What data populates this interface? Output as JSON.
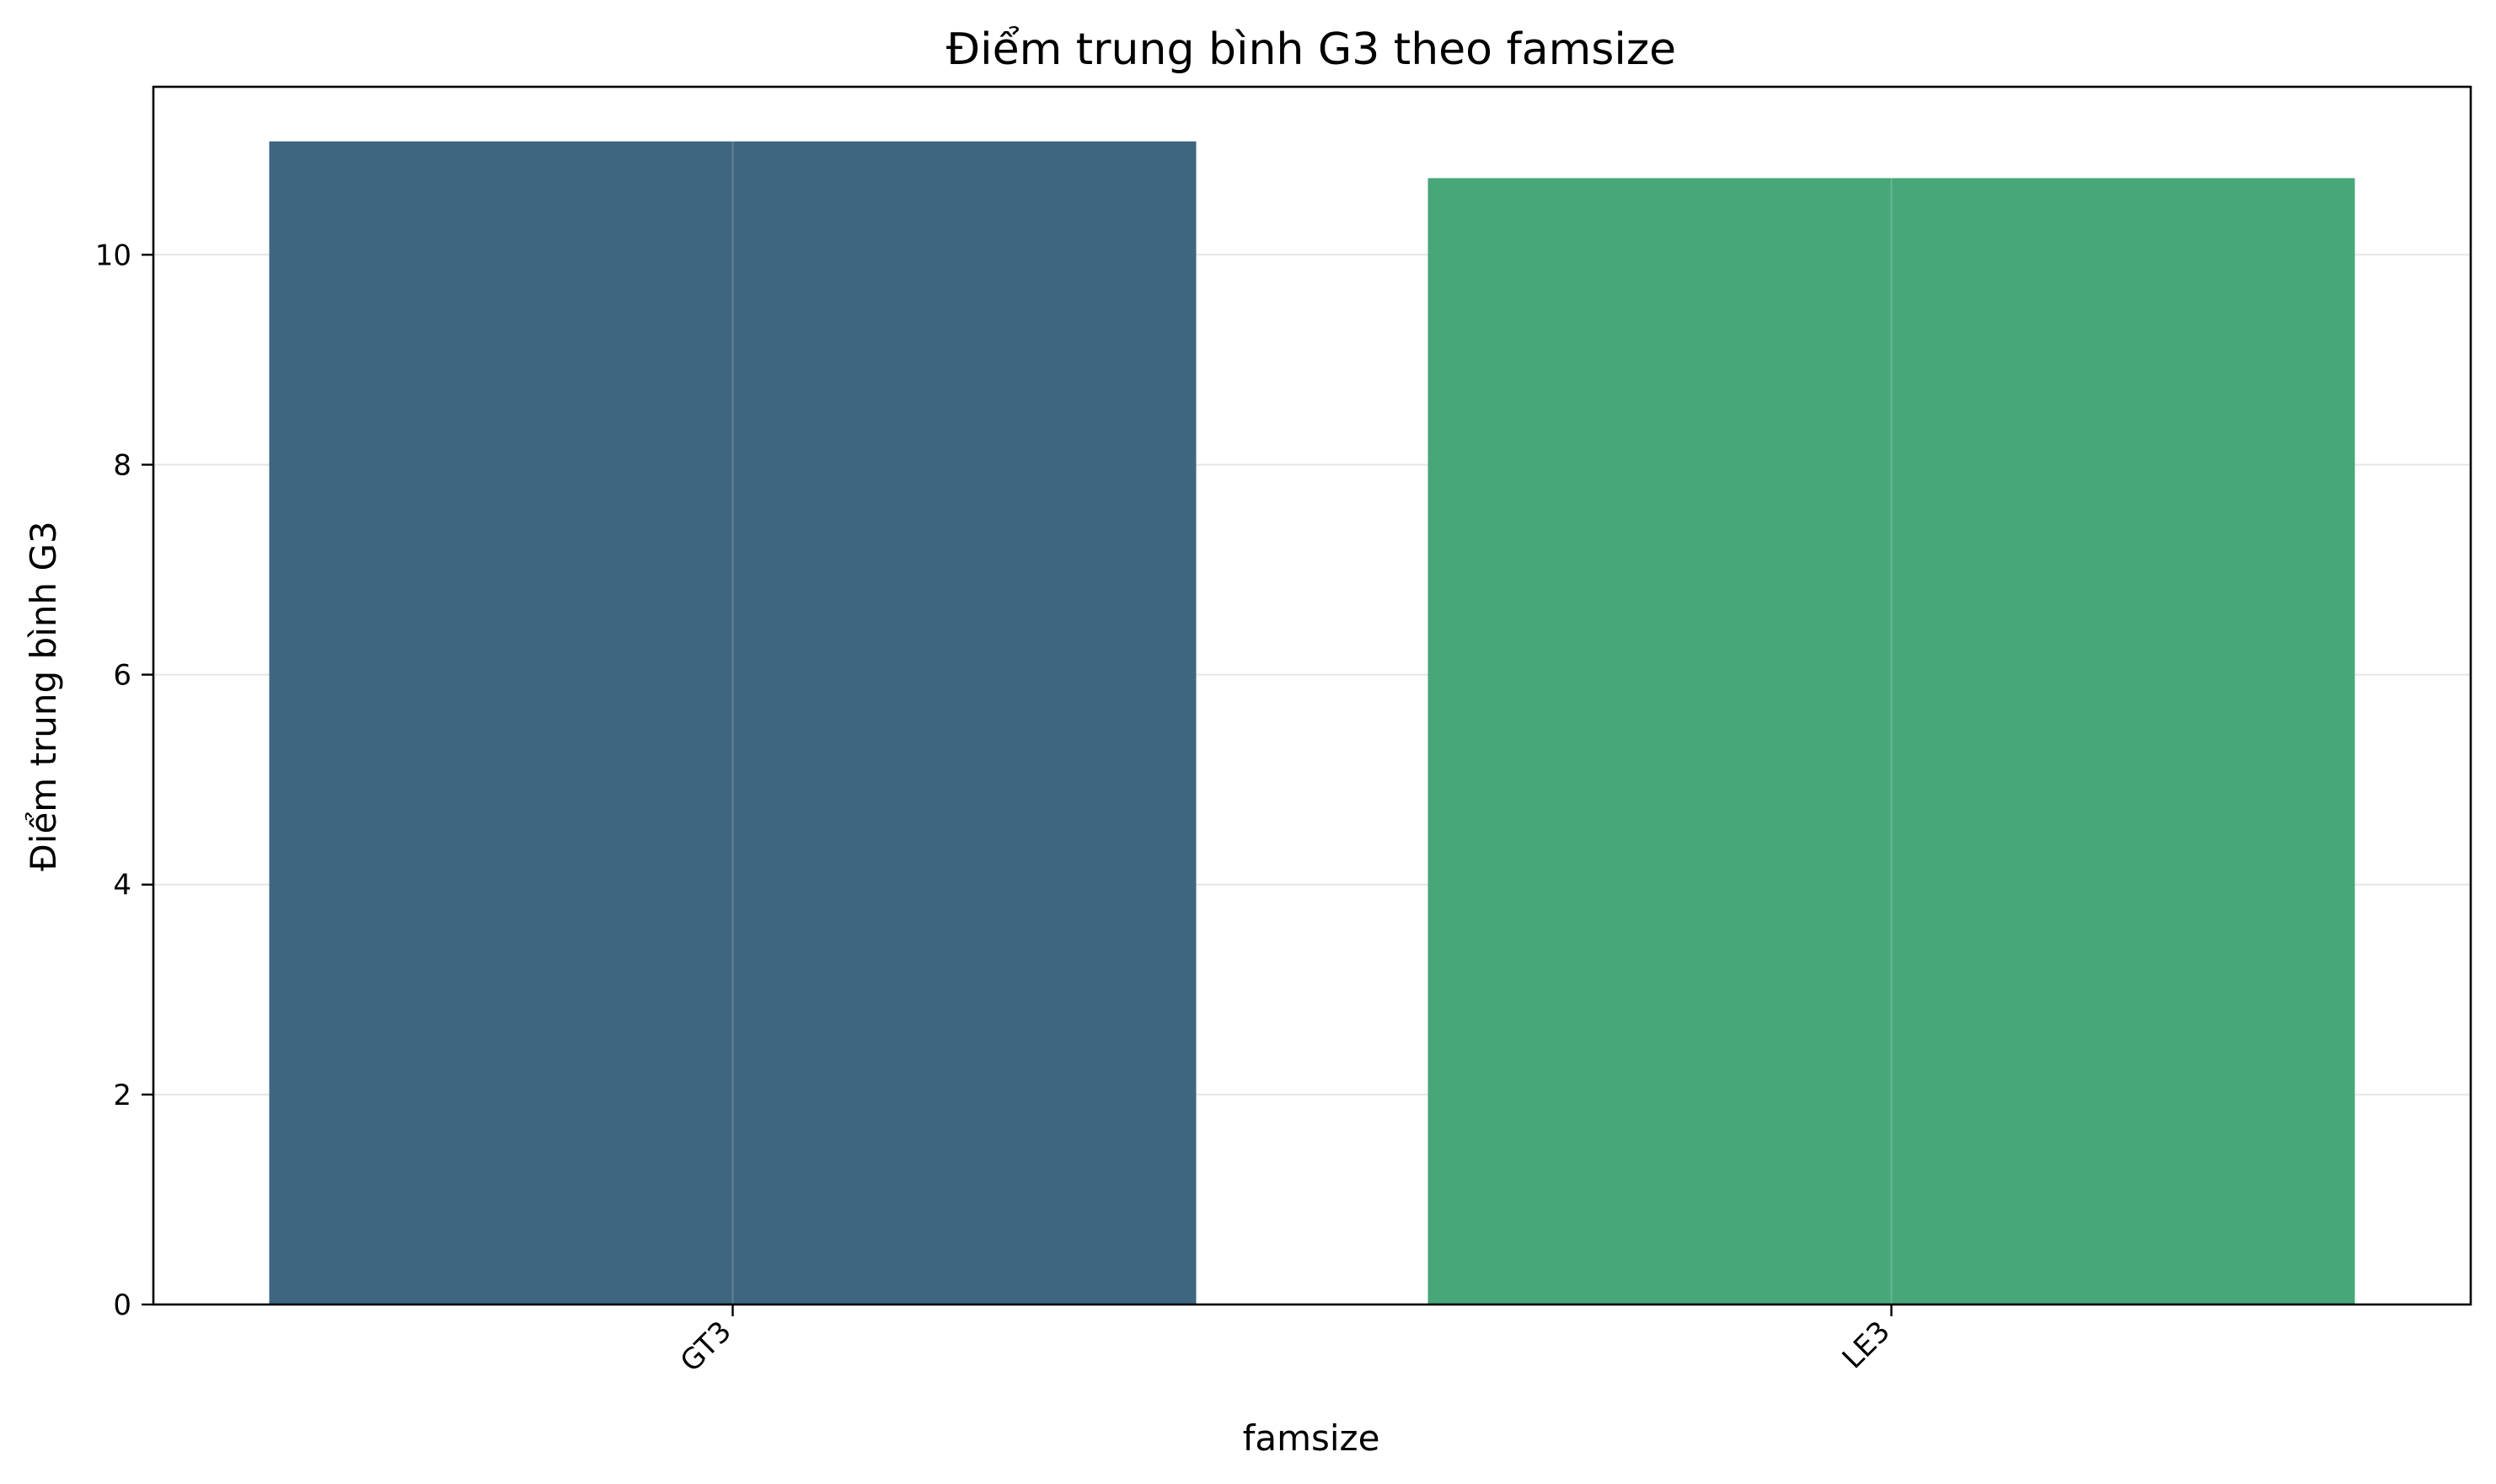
{
  "chart_data": {
    "type": "bar",
    "title": "Điểm trung bình G3 theo famsize",
    "xlabel": "famsize",
    "ylabel": "Điểm trung bình G3",
    "categories": [
      "GT3",
      "LE3"
    ],
    "values": [
      11.08,
      10.73
    ],
    "colors": [
      "#3e6680",
      "#47a778"
    ],
    "ylim": [
      0,
      11.6
    ],
    "yticks": [
      0,
      2,
      4,
      6,
      8,
      10
    ],
    "ytick_labels": [
      "0",
      "2",
      "4",
      "6",
      "8",
      "10"
    ],
    "xtick_rotation": -45,
    "grid": true,
    "legend": "none"
  }
}
